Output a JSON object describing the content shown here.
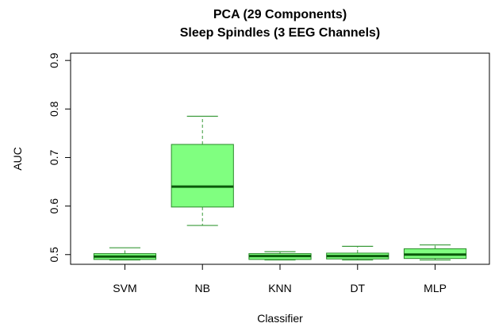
{
  "chart_data": {
    "type": "boxplot",
    "title": "PCA (29 Components)",
    "subtitle": "Sleep Spindles (3 EEG Channels)",
    "xlabel": "Classifier",
    "ylabel": "AUC",
    "ylim": [
      0.48,
      0.915
    ],
    "yticks": [
      "0.5",
      "0.6",
      "0.7",
      "0.8",
      "0.9"
    ],
    "categories": [
      "SVM",
      "NB",
      "KNN",
      "DT",
      "MLP"
    ],
    "boxes": [
      {
        "whisker_low": 0.489,
        "q1": 0.49,
        "median": 0.496,
        "q3": 0.502,
        "whisker_high": 0.514
      },
      {
        "whisker_low": 0.56,
        "q1": 0.598,
        "median": 0.64,
        "q3": 0.727,
        "whisker_high": 0.785
      },
      {
        "whisker_low": 0.489,
        "q1": 0.49,
        "median": 0.497,
        "q3": 0.502,
        "whisker_high": 0.506
      },
      {
        "whisker_low": 0.489,
        "q1": 0.491,
        "median": 0.497,
        "q3": 0.503,
        "whisker_high": 0.517
      },
      {
        "whisker_low": 0.489,
        "q1": 0.492,
        "median": 0.5,
        "q3": 0.512,
        "whisker_high": 0.52
      }
    ],
    "grid": false,
    "legend": "none",
    "colors": {
      "box_fill": "#80ff80",
      "box_stroke": "#2a8a2a",
      "median": "#0b5a0b",
      "whisker": "#3a9a3a",
      "frame": "#000000"
    }
  }
}
